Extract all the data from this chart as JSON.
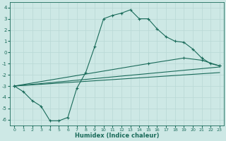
{
  "xlabel": "Humidex (Indice chaleur)",
  "bg_color": "#cde8e5",
  "line_color": "#1a6b5a",
  "grid_color": "#b8d8d5",
  "xlim": [
    -0.5,
    23.5
  ],
  "ylim": [
    -6.5,
    4.5
  ],
  "xticks": [
    0,
    1,
    2,
    3,
    4,
    5,
    6,
    7,
    8,
    9,
    10,
    11,
    12,
    13,
    14,
    15,
    16,
    17,
    18,
    19,
    20,
    21,
    22,
    23
  ],
  "yticks": [
    -6,
    -5,
    -4,
    -3,
    -2,
    -1,
    0,
    1,
    2,
    3,
    4
  ],
  "line1_x": [
    0,
    1,
    2,
    3,
    4,
    5,
    6,
    7,
    8,
    9,
    10,
    11,
    12,
    13,
    14,
    15,
    16,
    17,
    18,
    19,
    20,
    21,
    22,
    23
  ],
  "line1_y": [
    -3,
    -3.5,
    -4.3,
    -4.8,
    -6.1,
    -6.1,
    -5.8,
    -3.2,
    -1.8,
    0.5,
    3.0,
    3.3,
    3.5,
    3.8,
    3.0,
    3.0,
    2.1,
    1.4,
    1.0,
    0.9,
    0.3,
    -0.5,
    -1.0,
    -1.2
  ],
  "line2_x": [
    0,
    23
  ],
  "line2_y": [
    -3.0,
    -1.3
  ],
  "line3_x": [
    0,
    15,
    19,
    21,
    23
  ],
  "line3_y": [
    -3.0,
    -1.0,
    -0.5,
    -0.7,
    -1.2
  ],
  "line4_x": [
    0,
    23
  ],
  "line4_y": [
    -3.0,
    -1.8
  ],
  "figsize": [
    3.2,
    2.0
  ],
  "dpi": 100
}
